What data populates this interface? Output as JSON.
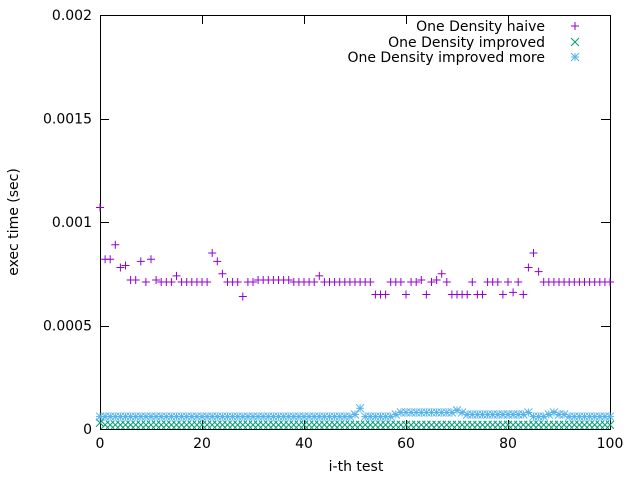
{
  "chart_data": {
    "type": "scatter",
    "title": "",
    "xlabel": "i-th test",
    "ylabel": "exec time (sec)",
    "xlim": [
      0,
      100
    ],
    "ylim": [
      0,
      0.002
    ],
    "x_ticks": [
      0,
      20,
      40,
      60,
      80,
      100
    ],
    "y_ticks": [
      0,
      0.0005,
      0.001,
      0.0015,
      0.002
    ],
    "x_tick_labels": [
      "0",
      "20",
      "40",
      "60",
      "80",
      "100"
    ],
    "y_tick_labels": [
      "0",
      "0.0005",
      "0.001",
      "0.0015",
      "0.002"
    ],
    "grid": false,
    "legend_position": "top-right",
    "series": [
      {
        "name": "One Density naive",
        "marker": "plus",
        "color": "#9400d3",
        "x": [
          0,
          1,
          2,
          3,
          4,
          5,
          6,
          7,
          8,
          9,
          10,
          11,
          12,
          13,
          14,
          15,
          16,
          17,
          18,
          19,
          20,
          21,
          22,
          23,
          24,
          25,
          26,
          27,
          28,
          29,
          30,
          31,
          32,
          33,
          34,
          35,
          36,
          37,
          38,
          39,
          40,
          41,
          42,
          43,
          44,
          45,
          46,
          47,
          48,
          49,
          50,
          51,
          52,
          53,
          54,
          55,
          56,
          57,
          58,
          59,
          60,
          61,
          62,
          63,
          64,
          65,
          66,
          67,
          68,
          69,
          70,
          71,
          72,
          73,
          74,
          75,
          76,
          77,
          78,
          79,
          80,
          81,
          82,
          83,
          84,
          85,
          86,
          87,
          88,
          89,
          90,
          91,
          92,
          93,
          94,
          95,
          96,
          97,
          98,
          99,
          100
        ],
        "y": [
          0.00107,
          0.00082,
          0.00082,
          0.00089,
          0.00078,
          0.00079,
          0.00072,
          0.00072,
          0.00081,
          0.00071,
          0.00082,
          0.00072,
          0.00071,
          0.00071,
          0.00071,
          0.00074,
          0.00071,
          0.00071,
          0.00071,
          0.00071,
          0.00071,
          0.00071,
          0.00085,
          0.00081,
          0.00075,
          0.00071,
          0.00071,
          0.00071,
          0.00064,
          0.00071,
          0.00071,
          0.00072,
          0.00072,
          0.00072,
          0.00072,
          0.00072,
          0.00072,
          0.00072,
          0.00071,
          0.00071,
          0.00071,
          0.00071,
          0.00071,
          0.00074,
          0.00071,
          0.00071,
          0.00071,
          0.00071,
          0.00071,
          0.00071,
          0.00071,
          0.00071,
          0.00071,
          0.00071,
          0.00065,
          0.00065,
          0.00065,
          0.00071,
          0.00071,
          0.00071,
          0.00065,
          0.00071,
          0.00071,
          0.00072,
          0.00065,
          0.00071,
          0.00072,
          0.00075,
          0.00071,
          0.00065,
          0.00065,
          0.00065,
          0.00065,
          0.00071,
          0.00065,
          0.00065,
          0.00071,
          0.00071,
          0.00071,
          0.00065,
          0.00071,
          0.00066,
          0.00071,
          0.00065,
          0.00078,
          0.00085,
          0.00076,
          0.00071,
          0.00071,
          0.00071,
          0.00071,
          0.00071,
          0.00071,
          0.00071,
          0.00071,
          0.00071,
          0.00071,
          0.00071,
          0.00071,
          0.00071,
          0.00071
        ]
      },
      {
        "name": "One Density improved",
        "marker": "cross",
        "color": "#009e73",
        "x": [
          0,
          1,
          2,
          3,
          4,
          5,
          6,
          7,
          8,
          9,
          10,
          11,
          12,
          13,
          14,
          15,
          16,
          17,
          18,
          19,
          20,
          21,
          22,
          23,
          24,
          25,
          26,
          27,
          28,
          29,
          30,
          31,
          32,
          33,
          34,
          35,
          36,
          37,
          38,
          39,
          40,
          41,
          42,
          43,
          44,
          45,
          46,
          47,
          48,
          49,
          50,
          51,
          52,
          53,
          54,
          55,
          56,
          57,
          58,
          59,
          60,
          61,
          62,
          63,
          64,
          65,
          66,
          67,
          68,
          69,
          70,
          71,
          72,
          73,
          74,
          75,
          76,
          77,
          78,
          79,
          80,
          81,
          82,
          83,
          84,
          85,
          86,
          87,
          88,
          89,
          90,
          91,
          92,
          93,
          94,
          95,
          96,
          97,
          98,
          99,
          100
        ],
        "y": [
          3e-05,
          2e-05,
          2e-05,
          2e-05,
          2e-05,
          2e-05,
          2e-05,
          2e-05,
          2e-05,
          2e-05,
          2e-05,
          2e-05,
          2e-05,
          2e-05,
          2e-05,
          2e-05,
          2e-05,
          2e-05,
          2e-05,
          2e-05,
          2e-05,
          2e-05,
          2e-05,
          2e-05,
          2e-05,
          2e-05,
          2e-05,
          2e-05,
          2e-05,
          2e-05,
          2e-05,
          2e-05,
          2e-05,
          2e-05,
          2e-05,
          2e-05,
          2e-05,
          2e-05,
          2e-05,
          2e-05,
          2e-05,
          2e-05,
          2e-05,
          2e-05,
          2e-05,
          2e-05,
          2e-05,
          2e-05,
          2e-05,
          2e-05,
          2e-05,
          2e-05,
          2e-05,
          2e-05,
          2e-05,
          2e-05,
          2e-05,
          2e-05,
          2e-05,
          2e-05,
          2e-05,
          2e-05,
          2e-05,
          2e-05,
          2e-05,
          2e-05,
          2e-05,
          2e-05,
          2e-05,
          2e-05,
          2e-05,
          2e-05,
          2e-05,
          2e-05,
          2e-05,
          2e-05,
          2e-05,
          2e-05,
          2e-05,
          2e-05,
          2e-05,
          2e-05,
          2e-05,
          2e-05,
          2e-05,
          2e-05,
          2e-05,
          2e-05,
          2e-05,
          2e-05,
          2e-05,
          2e-05,
          2e-05,
          2e-05,
          2e-05,
          2e-05,
          2e-05,
          2e-05,
          2e-05,
          2e-05,
          2e-05
        ]
      },
      {
        "name": "One Density improved more",
        "marker": "star",
        "color": "#56b4e9",
        "x": [
          0,
          1,
          2,
          3,
          4,
          5,
          6,
          7,
          8,
          9,
          10,
          11,
          12,
          13,
          14,
          15,
          16,
          17,
          18,
          19,
          20,
          21,
          22,
          23,
          24,
          25,
          26,
          27,
          28,
          29,
          30,
          31,
          32,
          33,
          34,
          35,
          36,
          37,
          38,
          39,
          40,
          41,
          42,
          43,
          44,
          45,
          46,
          47,
          48,
          49,
          50,
          51,
          52,
          53,
          54,
          55,
          56,
          57,
          58,
          59,
          60,
          61,
          62,
          63,
          64,
          65,
          66,
          67,
          68,
          69,
          70,
          71,
          72,
          73,
          74,
          75,
          76,
          77,
          78,
          79,
          80,
          81,
          82,
          83,
          84,
          85,
          86,
          87,
          88,
          89,
          90,
          91,
          92,
          93,
          94,
          95,
          96,
          97,
          98,
          99,
          100
        ],
        "y": [
          6e-05,
          6e-05,
          6e-05,
          6e-05,
          6e-05,
          6e-05,
          6e-05,
          6e-05,
          6e-05,
          6e-05,
          6e-05,
          6e-05,
          6e-05,
          6e-05,
          6e-05,
          6e-05,
          6e-05,
          6e-05,
          6e-05,
          6e-05,
          6e-05,
          6e-05,
          6e-05,
          6e-05,
          6e-05,
          6e-05,
          6e-05,
          6e-05,
          6e-05,
          6e-05,
          6e-05,
          6e-05,
          6e-05,
          6e-05,
          6e-05,
          6e-05,
          6e-05,
          6e-05,
          6e-05,
          6e-05,
          6e-05,
          6e-05,
          6e-05,
          6e-05,
          6e-05,
          6e-05,
          6e-05,
          6e-05,
          6e-05,
          6e-05,
          7e-05,
          0.0001,
          6e-05,
          6e-05,
          6e-05,
          6e-05,
          6e-05,
          6e-05,
          7e-05,
          8e-05,
          8e-05,
          8e-05,
          8e-05,
          8e-05,
          8e-05,
          8e-05,
          8e-05,
          8e-05,
          8e-05,
          8e-05,
          9e-05,
          8e-05,
          7e-05,
          7e-05,
          7e-05,
          7e-05,
          7e-05,
          7e-05,
          7e-05,
          7e-05,
          7e-05,
          7e-05,
          7e-05,
          7e-05,
          8e-05,
          6e-05,
          6e-05,
          6e-05,
          7e-05,
          8e-05,
          7e-05,
          7e-05,
          6e-05,
          6e-05,
          6e-05,
          6e-05,
          6e-05,
          6e-05,
          6e-05,
          6e-05,
          6e-05
        ]
      }
    ]
  }
}
